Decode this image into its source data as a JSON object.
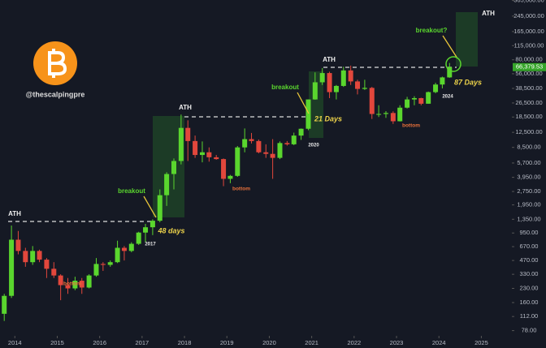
{
  "chart_data": {
    "type": "candlestick",
    "handle": "@thescalpingpre",
    "log_scale": true,
    "up_color": "#5ad62e",
    "down_color": "#e2473c",
    "xlim": [
      2013.65,
      2025.72
    ],
    "xticks": [
      2014,
      2015,
      2016,
      2017,
      2018,
      2019,
      2020,
      2021,
      2022,
      2023,
      2024,
      2025
    ],
    "ylim": [
      50,
      370000
    ],
    "yticks": [
      {
        "value": 78,
        "label": "78.00"
      },
      {
        "value": 112,
        "label": "112.00"
      },
      {
        "value": 160,
        "label": "160.00"
      },
      {
        "value": 230,
        "label": "230.00"
      },
      {
        "value": 330,
        "label": "330.00"
      },
      {
        "value": 470,
        "label": "470.00"
      },
      {
        "value": 670,
        "label": "670.00"
      },
      {
        "value": 950,
        "label": "950.00"
      },
      {
        "value": 1350,
        "label": "1,350.00"
      },
      {
        "value": 1950,
        "label": "1,950.00"
      },
      {
        "value": 2750,
        "label": "2,750.00"
      },
      {
        "value": 3950,
        "label": "3,950.00"
      },
      {
        "value": 5700,
        "label": "5,700.00"
      },
      {
        "value": 8500,
        "label": "8,500.00"
      },
      {
        "value": 12500,
        "label": "12,500.00"
      },
      {
        "value": 18500,
        "label": "18,500.00"
      },
      {
        "value": 26500,
        "label": "26,500.00"
      },
      {
        "value": 38500,
        "label": "38,500.00"
      },
      {
        "value": 56000,
        "label": "56,000.00"
      },
      {
        "value": 80000,
        "label": "80,000.00"
      },
      {
        "value": 115000,
        "label": "115,000.00"
      },
      {
        "value": 165000,
        "label": "165,000.00"
      },
      {
        "value": 245000,
        "label": "245,000.00"
      },
      {
        "value": 365000,
        "label": "365,000.00"
      }
    ],
    "last_price": {
      "value": 66379.53,
      "label": "66,379.53"
    },
    "x": [
      2013.75,
      2013.92,
      2014.08,
      2014.25,
      2014.42,
      2014.58,
      2014.75,
      2014.92,
      2015.08,
      2015.25,
      2015.42,
      2015.58,
      2015.75,
      2015.92,
      2016.08,
      2016.25,
      2016.42,
      2016.58,
      2016.75,
      2016.92,
      2017.08,
      2017.25,
      2017.42,
      2017.58,
      2017.75,
      2017.92,
      2018.08,
      2018.25,
      2018.42,
      2018.58,
      2018.75,
      2018.92,
      2019.08,
      2019.25,
      2019.42,
      2019.58,
      2019.75,
      2019.92,
      2020.08,
      2020.25,
      2020.42,
      2020.58,
      2020.75,
      2020.92,
      2021.08,
      2021.25,
      2021.42,
      2021.58,
      2021.75,
      2021.92,
      2022.08,
      2022.25,
      2022.42,
      2022.58,
      2022.75,
      2022.92,
      2023.08,
      2023.25,
      2023.42,
      2023.58,
      2023.75,
      2023.92,
      2024.08,
      2024.25
    ],
    "open": [
      120,
      190,
      800,
      600,
      450,
      600,
      480,
      380,
      320,
      250,
      230,
      280,
      235,
      320,
      430,
      420,
      450,
      650,
      600,
      720,
      960,
      1100,
      1300,
      2500,
      4300,
      6000,
      14000,
      10000,
      7000,
      7500,
      6600,
      6300,
      3800,
      4100,
      8500,
      10500,
      10000,
      7500,
      7200,
      6500,
      9500,
      9200,
      11500,
      13700,
      29000,
      45000,
      57000,
      35000,
      41000,
      61000,
      46000,
      38000,
      39000,
      20000,
      20000,
      20500,
      16600,
      23500,
      29000,
      30000,
      26000,
      35000,
      42500,
      51000
    ],
    "high": [
      200,
      1150,
      1000,
      650,
      680,
      620,
      500,
      450,
      330,
      300,
      310,
      300,
      330,
      500,
      450,
      470,
      780,
      680,
      750,
      980,
      1200,
      1350,
      2900,
      4500,
      6400,
      19700,
      17000,
      11500,
      9900,
      8500,
      7000,
      6400,
      4200,
      8800,
      13800,
      12300,
      10400,
      9200,
      10500,
      9900,
      10000,
      12400,
      13800,
      29000,
      58000,
      64800,
      59000,
      42000,
      67000,
      69000,
      48000,
      48000,
      40000,
      25000,
      21500,
      21400,
      25000,
      31000,
      31500,
      30300,
      35500,
      44500,
      52000,
      73800
    ],
    "low": [
      100,
      180,
      550,
      400,
      420,
      450,
      300,
      300,
      170,
      200,
      220,
      200,
      230,
      310,
      360,
      400,
      440,
      470,
      580,
      700,
      750,
      900,
      1250,
      1900,
      2900,
      5500,
      6000,
      6500,
      5800,
      5900,
      6200,
      3150,
      3400,
      4000,
      7500,
      9400,
      7300,
      6500,
      3800,
      6300,
      8900,
      9000,
      10300,
      13200,
      28800,
      42000,
      30000,
      29000,
      40000,
      42000,
      33000,
      37000,
      17600,
      18500,
      18100,
      15500,
      16500,
      23000,
      25000,
      25000,
      26000,
      34000,
      38500,
      50500
    ],
    "close": [
      190,
      800,
      600,
      450,
      600,
      480,
      380,
      320,
      250,
      230,
      280,
      235,
      320,
      430,
      420,
      450,
      650,
      600,
      720,
      960,
      1100,
      1300,
      2500,
      4300,
      6000,
      14000,
      10000,
      7000,
      7500,
      6600,
      6300,
      3800,
      4100,
      8500,
      10500,
      10000,
      7500,
      7200,
      6500,
      9500,
      9200,
      11500,
      13700,
      29000,
      45000,
      57000,
      35000,
      41000,
      61000,
      46000,
      38000,
      39000,
      20000,
      20000,
      20500,
      16600,
      23500,
      29000,
      30000,
      26000,
      35000,
      42500,
      51000,
      66400
    ],
    "annotations": [
      "ATH",
      "ATH",
      "ATH",
      "ATH",
      "breakout",
      "breakout",
      "breakout?",
      "48 days",
      "21 Days",
      "87 Days",
      "bottom",
      "bottom",
      "bottom",
      "2017",
      "2020",
      "2024"
    ]
  }
}
